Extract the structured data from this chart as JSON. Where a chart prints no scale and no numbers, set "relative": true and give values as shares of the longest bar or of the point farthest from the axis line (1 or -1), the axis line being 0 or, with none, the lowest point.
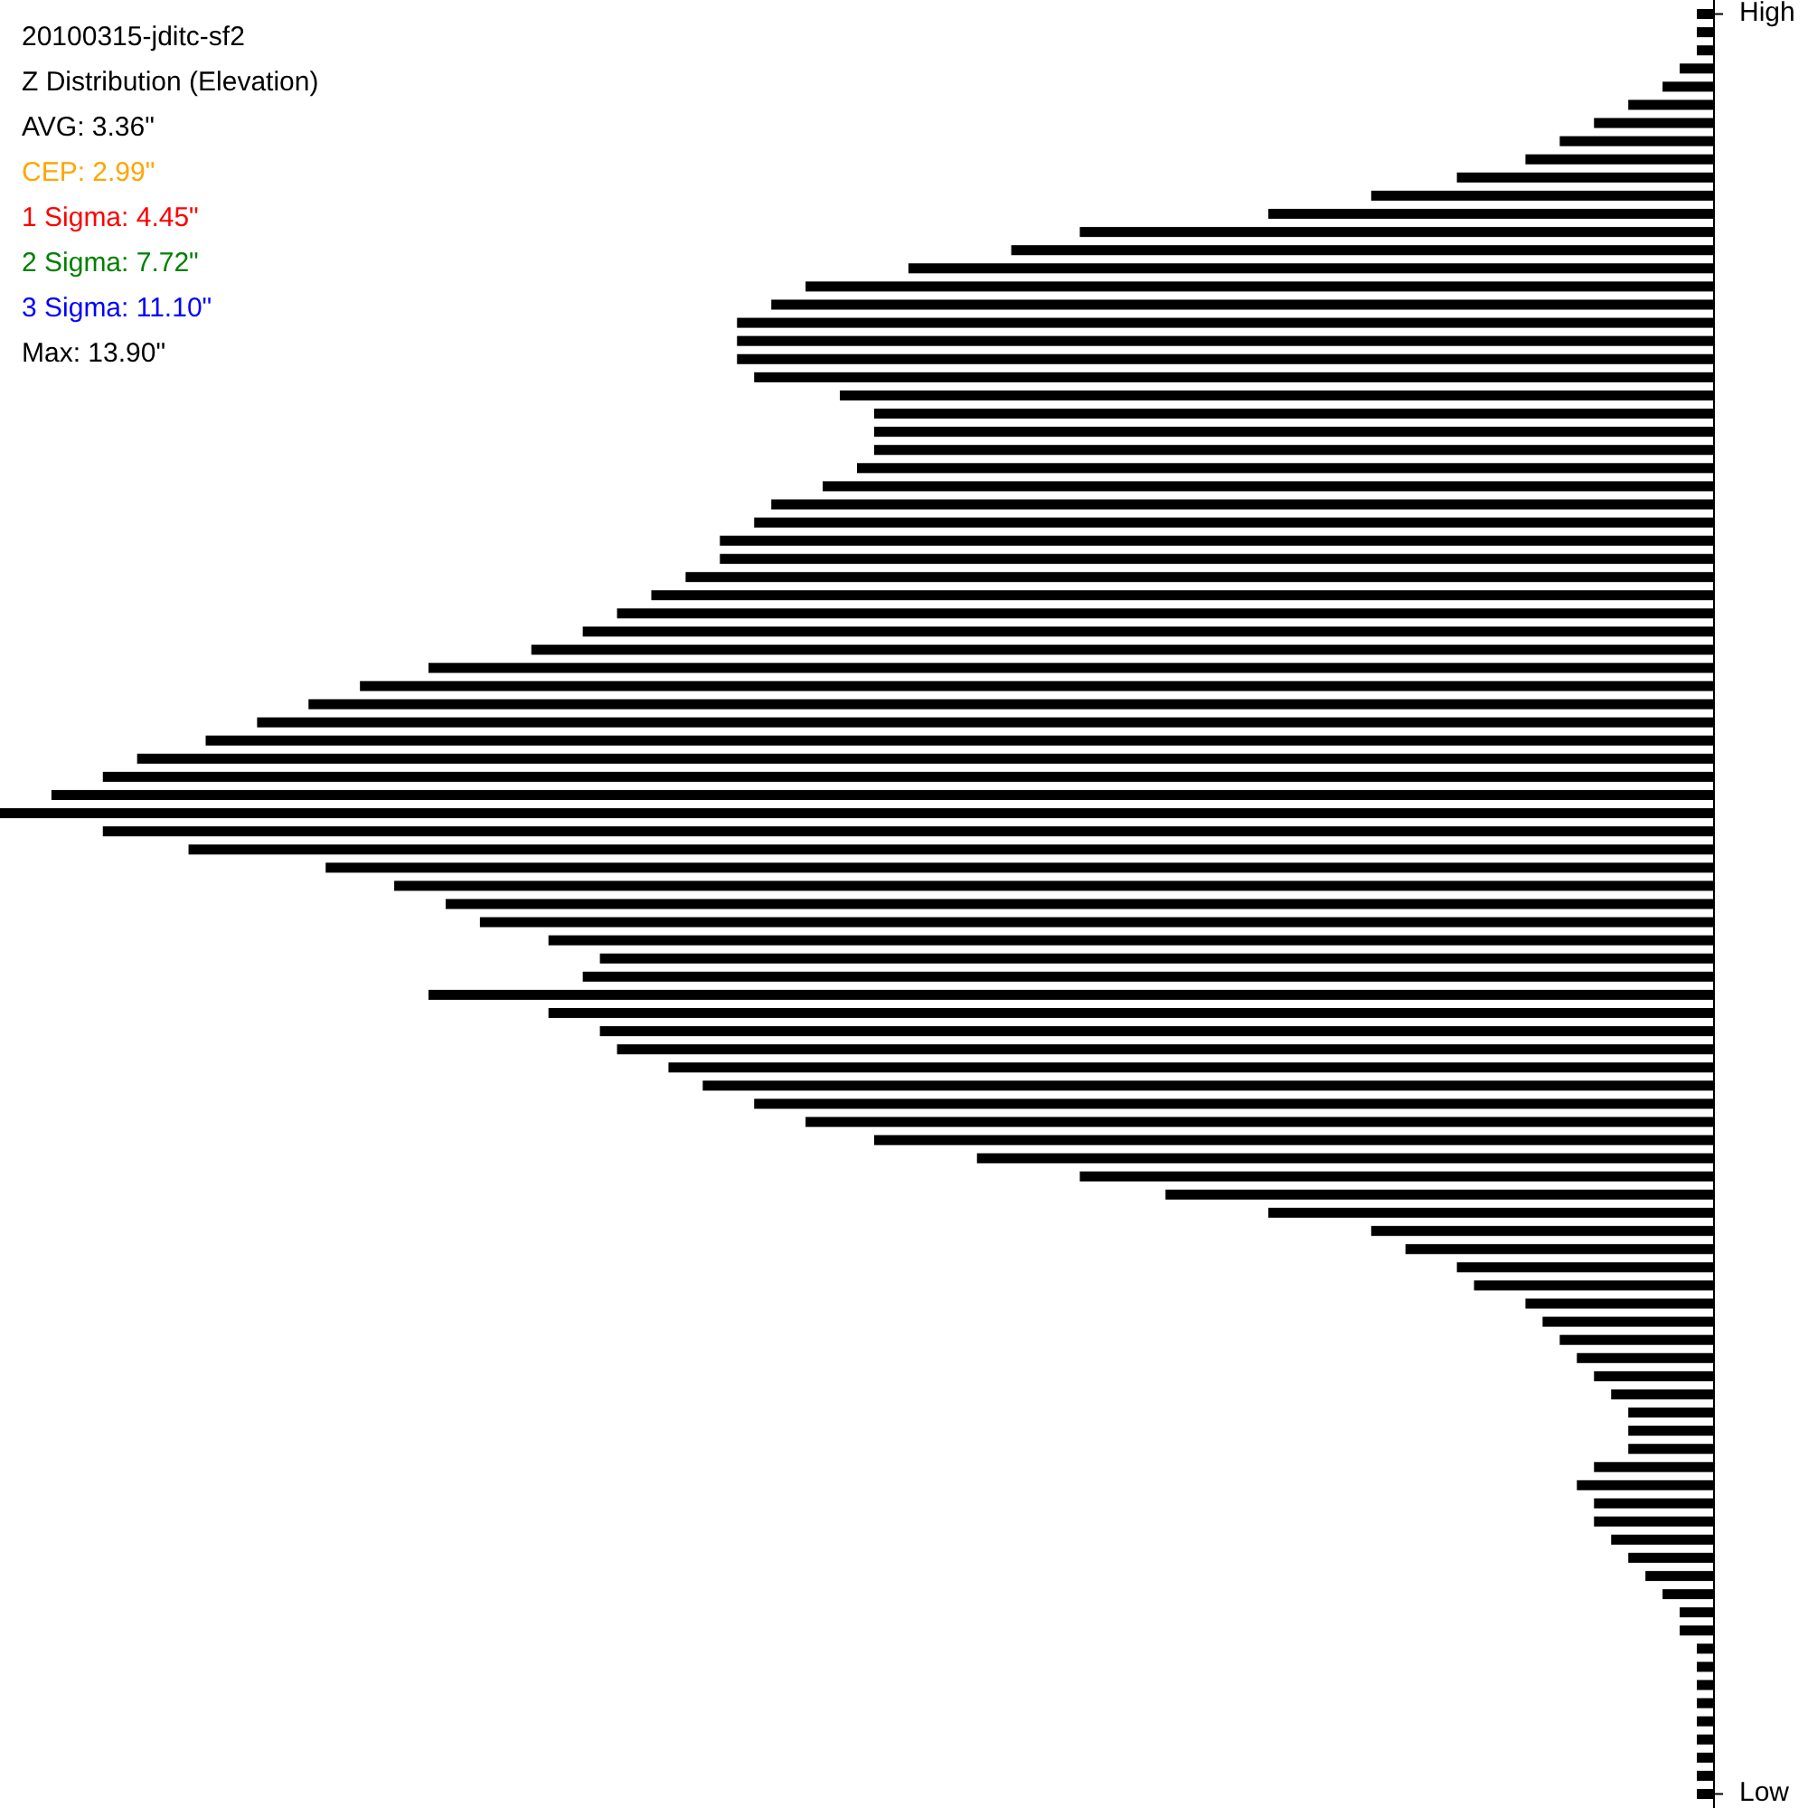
{
  "chart_data": {
    "type": "bar",
    "orientation": "horizontal",
    "title": "20100315-jditc-sf2",
    "subtitle": "Z Distribution (Elevation)",
    "annotations": [
      "AVG: 3.36\"",
      "CEP: 2.99\"",
      "1 Sigma: 4.45\"",
      "2 Sigma: 7.72\"",
      "3 Sigma: 11.10\"",
      "Max: 13.90\""
    ],
    "categories": [
      "High",
      null,
      null,
      null,
      null,
      null,
      null,
      null,
      null,
      null,
      null,
      null,
      null,
      null,
      null,
      null,
      null,
      null,
      null,
      null,
      null,
      null,
      null,
      null,
      null,
      null,
      null,
      null,
      null,
      null,
      null,
      null,
      null,
      null,
      null,
      null,
      null,
      null,
      null,
      null,
      null,
      null,
      null,
      null,
      null,
      null,
      null,
      null,
      null,
      null,
      null,
      null,
      null,
      null,
      null,
      null,
      null,
      null,
      null,
      null,
      null,
      null,
      null,
      null,
      null,
      null,
      null,
      null,
      null,
      null,
      null,
      null,
      null,
      null,
      null,
      null,
      null,
      null,
      null,
      null,
      null,
      null,
      null,
      null,
      null,
      null,
      null,
      null,
      null,
      null,
      null,
      null,
      null,
      null,
      null,
      null,
      null,
      null,
      "Low"
    ],
    "color": "#000000",
    "values": [
      0.01,
      0.01,
      0.01,
      0.02,
      0.03,
      0.05,
      0.07,
      0.09,
      0.11,
      0.15,
      0.2,
      0.26,
      0.37,
      0.41,
      0.47,
      0.53,
      0.55,
      0.57,
      0.57,
      0.57,
      0.56,
      0.51,
      0.49,
      0.49,
      0.49,
      0.5,
      0.52,
      0.55,
      0.56,
      0.58,
      0.58,
      0.6,
      0.62,
      0.64,
      0.66,
      0.69,
      0.75,
      0.79,
      0.82,
      0.85,
      0.88,
      0.92,
      0.94,
      0.97,
      1,
      0.94,
      0.89,
      0.81,
      0.77,
      0.74,
      0.72,
      0.68,
      0.65,
      0.66,
      0.75,
      0.68,
      0.65,
      0.64,
      0.61,
      0.59,
      0.56,
      0.53,
      0.49,
      0.43,
      0.37,
      0.32,
      0.26,
      0.2,
      0.18,
      0.15,
      0.14,
      0.11,
      0.1,
      0.09,
      0.08,
      0.07,
      0.06,
      0.05,
      0.05,
      0.05,
      0.07,
      0.08,
      0.07,
      0.07,
      0.06,
      0.05,
      0.04,
      0.03,
      0.02,
      0.02,
      0.01,
      0.01,
      0.01,
      0.01,
      0.01,
      0.01,
      0.01,
      0.01,
      0.01
    ],
    "relative": true
  }
}
